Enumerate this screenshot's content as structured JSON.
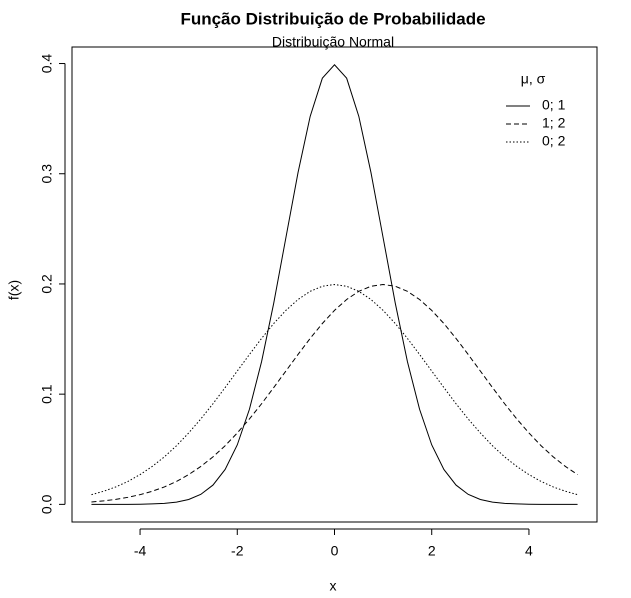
{
  "chart_data": {
    "type": "line",
    "title": "Função Distribuição de Probabilidade",
    "subtitle": "Distribuição Normal",
    "x_label": "x",
    "y_label": "f(x)",
    "legend_title": "μ, σ",
    "legend_position": "top-right",
    "x": [
      -5,
      -4.75,
      -4.5,
      -4.25,
      -4,
      -3.75,
      -3.5,
      -3.25,
      -3,
      -2.75,
      -2.5,
      -2.25,
      -2,
      -1.75,
      -1.5,
      -1.25,
      -1,
      -0.75,
      -0.5,
      -0.25,
      0,
      0.25,
      0.5,
      0.75,
      1,
      1.25,
      1.5,
      1.75,
      2,
      2.25,
      2.5,
      2.75,
      3,
      3.25,
      3.5,
      3.75,
      4,
      4.25,
      4.5,
      4.75,
      5
    ],
    "series": [
      {
        "name": "0; 1",
        "color": "#000000",
        "linestyle": "solid",
        "values": [
          0,
          0,
          0,
          0,
          0.0001,
          0.0004,
          0.0009,
          0.002,
          0.0044,
          0.0091,
          0.0175,
          0.0317,
          0.054,
          0.0863,
          0.1295,
          0.1826,
          0.242,
          0.3011,
          0.3521,
          0.3867,
          0.3989,
          0.3867,
          0.3521,
          0.3011,
          0.242,
          0.1826,
          0.1295,
          0.0863,
          0.054,
          0.0317,
          0.0175,
          0.0091,
          0.0044,
          0.002,
          0.0009,
          0.0004,
          0.0001,
          0,
          0,
          0,
          0
        ]
      },
      {
        "name": "1; 2",
        "color": "#000000",
        "linestyle": "dashed",
        "values": [
          0.0022,
          0.0032,
          0.0045,
          0.0064,
          0.0088,
          0.0119,
          0.0158,
          0.0208,
          0.027,
          0.0344,
          0.0431,
          0.0532,
          0.0648,
          0.0775,
          0.0913,
          0.106,
          0.121,
          0.136,
          0.1506,
          0.1641,
          0.176,
          0.1859,
          0.1933,
          0.1979,
          0.1995,
          0.1979,
          0.1933,
          0.1859,
          0.176,
          0.1641,
          0.1506,
          0.136,
          0.121,
          0.106,
          0.0913,
          0.0775,
          0.0648,
          0.0532,
          0.0431,
          0.0344,
          0.027
        ]
      },
      {
        "name": "0; 2",
        "color": "#000000",
        "linestyle": "dotted",
        "values": [
          0.0088,
          0.0119,
          0.0158,
          0.0208,
          0.027,
          0.0344,
          0.0431,
          0.0532,
          0.0648,
          0.0775,
          0.0913,
          0.106,
          0.121,
          0.136,
          0.1506,
          0.1641,
          0.176,
          0.1859,
          0.1933,
          0.1979,
          0.1995,
          0.1979,
          0.1933,
          0.1859,
          0.176,
          0.1641,
          0.1506,
          0.136,
          0.121,
          0.106,
          0.0913,
          0.0775,
          0.0648,
          0.0532,
          0.0431,
          0.0344,
          0.027,
          0.0208,
          0.0158,
          0.0119,
          0.0088
        ]
      }
    ],
    "xlim": [
      -5.4,
      5.4
    ],
    "xticks": [
      -4,
      -2,
      0,
      2,
      4
    ],
    "ylim": [
      -0.016,
      0.415
    ],
    "yticks": [
      {
        "value": 0,
        "label": "0.0"
      },
      0.1,
      0.2,
      0.3,
      0.4
    ],
    "grid": false
  }
}
